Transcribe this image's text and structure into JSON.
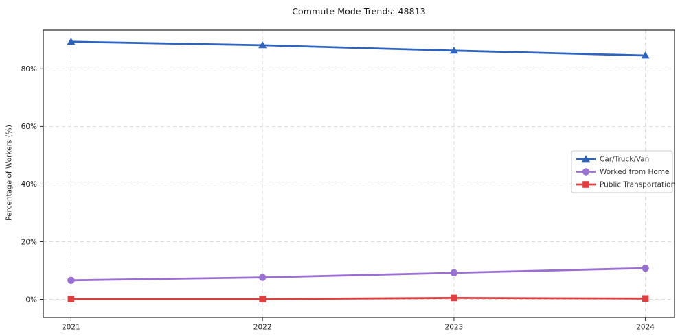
{
  "page": {
    "background": "#ffffff"
  },
  "chart_data": {
    "type": "line",
    "title": "Commute Mode Trends: 48813",
    "xlabel": "",
    "ylabel": "Percentage of Workers (%)",
    "x": [
      2021,
      2022,
      2023,
      2024
    ],
    "xtick_labels": [
      "2021",
      "2022",
      "2023",
      "2024"
    ],
    "yticks": [
      0,
      20,
      40,
      60,
      80
    ],
    "ytick_labels": [
      "0%",
      "20%",
      "40%",
      "60%",
      "80%"
    ],
    "xlim": [
      2020.855,
      2024.152
    ],
    "ylim": [
      -6.3,
      93.4
    ],
    "grid": true,
    "grid_style": "dashed",
    "legend_position": "center-right",
    "series": [
      {
        "name": "Car/Truck/Van",
        "marker": "triangle",
        "color": "#2e64be",
        "values": [
          89.4,
          88.2,
          86.3,
          84.6
        ]
      },
      {
        "name": "Worked from Home",
        "marker": "circle",
        "color": "#9a6fd2",
        "values": [
          6.6,
          7.6,
          9.2,
          10.8
        ]
      },
      {
        "name": "Public Transportation",
        "marker": "square",
        "color": "#e03e3e",
        "values": [
          0.1,
          0.1,
          0.5,
          0.3
        ]
      }
    ],
    "colors": {
      "axis": "#262626",
      "tick_label": "#262626",
      "grid": "#dbdbdb",
      "legend_border": "#cccccc",
      "legend_background": "#ffffff",
      "legend_text": "#333333"
    }
  }
}
